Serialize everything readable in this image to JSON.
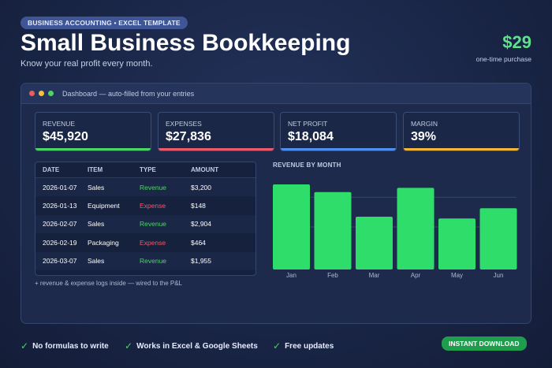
{
  "header": {
    "badge": "BUSINESS ACCOUNTING  •  EXCEL TEMPLATE",
    "title": "Small Business Bookkeeping",
    "subtitle": "Know your real profit every month.",
    "price": "$29",
    "price_note": "one-time purchase"
  },
  "window": {
    "title": "Dashboard — auto-filled from your entries"
  },
  "kpis": [
    {
      "label": "REVENUE",
      "value": "$45,920",
      "color": "#4cd465"
    },
    {
      "label": "EXPENSES",
      "value": "$27,836",
      "color": "#ef5a6a"
    },
    {
      "label": "NET PROFIT",
      "value": "$18,084",
      "color": "#4f8ff0"
    },
    {
      "label": "MARGIN",
      "value": "39%",
      "color": "#f2b63a"
    }
  ],
  "table": {
    "headers": [
      "DATE",
      "ITEM",
      "TYPE",
      "AMOUNT"
    ],
    "rows": [
      {
        "date": "2026-01-07",
        "item": "Sales",
        "type": "Revenue",
        "amount": "$3,200"
      },
      {
        "date": "2026-01-13",
        "item": "Equipment",
        "type": "Expense",
        "amount": "$148"
      },
      {
        "date": "2026-02-07",
        "item": "Sales",
        "type": "Revenue",
        "amount": "$2,904"
      },
      {
        "date": "2026-02-19",
        "item": "Packaging",
        "type": "Expense",
        "amount": "$464"
      },
      {
        "date": "2026-03-07",
        "item": "Sales",
        "type": "Revenue",
        "amount": "$1,955"
      }
    ]
  },
  "chart_data": {
    "type": "bar",
    "title": "REVENUE BY MONTH",
    "categories": [
      "Jan",
      "Feb",
      "Mar",
      "Apr",
      "May",
      "Jun"
    ],
    "values": [
      100,
      91,
      62,
      96,
      60,
      72
    ],
    "ylim": [
      0,
      100
    ],
    "grid": true,
    "color": "#2fdd6a"
  },
  "footnote": "+ revenue & expense logs inside — wired to the P&L",
  "features": [
    {
      "label": "No formulas to write"
    },
    {
      "label": "Works in Excel & Google Sheets"
    },
    {
      "label": "Free updates"
    }
  ],
  "cta": "INSTANT DOWNLOAD"
}
